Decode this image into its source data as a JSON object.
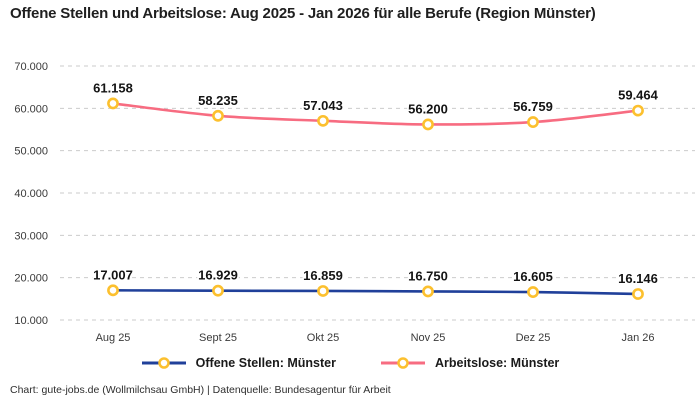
{
  "title": "Offene Stellen und Arbeitslose: Aug 2025 - Jan 2026 für alle Berufe (Region Münster)",
  "footer": "Chart: gute-jobs.de (Wollmilchsau GmbH) | Datenquelle: Bundesagentur für Arbeit",
  "colors": {
    "open_positions_line": "#20409A",
    "unemployed_line": "#F76C81",
    "marker_ring": "#FCC02E",
    "marker_fill": "#FFFFFF",
    "gridline": "#CBCBCB",
    "data_label": "#141414",
    "tick_label": "#3A3A3A"
  },
  "chart_data": {
    "type": "line",
    "title": "Offene Stellen und Arbeitslose: Aug 2025 - Jan 2026 für alle Berufe (Region Münster)",
    "categories": [
      "Aug 25",
      "Sept 25",
      "Okt 25",
      "Nov 25",
      "Dez 25",
      "Jan 26"
    ],
    "series": [
      {
        "name": "Offene Stellen: Münster",
        "color": "#20409A",
        "values": [
          17007,
          16929,
          16859,
          16750,
          16605,
          16146
        ],
        "labels": [
          "17.007",
          "16.929",
          "16.859",
          "16.750",
          "16.605",
          "16.146"
        ]
      },
      {
        "name": "Arbeitslose: Münster",
        "color": "#F76C81",
        "values": [
          61158,
          58235,
          57043,
          56200,
          56759,
          59464
        ],
        "labels": [
          "61.158",
          "58.235",
          "57.043",
          "56.200",
          "56.759",
          "59.464"
        ]
      }
    ],
    "yticks": [
      {
        "value": 70000,
        "label": "70.000"
      },
      {
        "value": 60000,
        "label": "60.000"
      },
      {
        "value": 50000,
        "label": "50.000"
      },
      {
        "value": 40000,
        "label": "40.000"
      },
      {
        "value": 30000,
        "label": "30.000"
      },
      {
        "value": 20000,
        "label": "20.000"
      },
      {
        "value": 10000,
        "label": "10.000"
      }
    ],
    "ylim": [
      10000,
      70000
    ],
    "grid": true,
    "grid_style": "dashed",
    "legend_position": "bottom",
    "xlabel": "",
    "ylabel": ""
  }
}
